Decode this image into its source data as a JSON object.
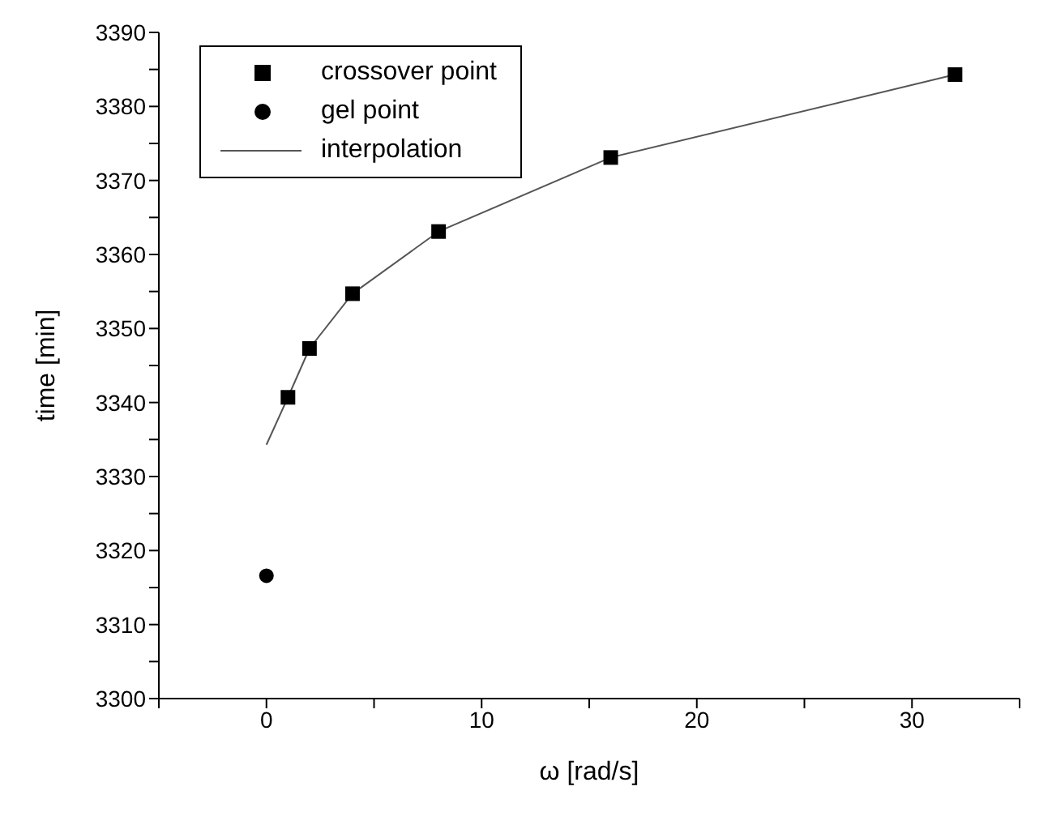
{
  "chart_data": {
    "type": "scatter",
    "xlabel": "ω [rad/s]",
    "ylabel": "time [min]",
    "xlim": [
      -5,
      35
    ],
    "xticks": [
      {
        "value": -5,
        "label": null
      },
      0,
      {
        "value": 5,
        "label": null
      },
      10,
      {
        "value": 15,
        "label": null
      },
      20,
      {
        "value": 25,
        "label": null
      },
      30,
      {
        "value": 35,
        "label": null
      }
    ],
    "ylim": [
      3300,
      3390
    ],
    "yticks": [
      3300,
      {
        "value": 3305,
        "label": null
      },
      3310,
      {
        "value": 3315,
        "label": null
      },
      3320,
      {
        "value": 3325,
        "label": null
      },
      3330,
      {
        "value": 3335,
        "label": null
      },
      3340,
      {
        "value": 3345,
        "label": null
      },
      3350,
      {
        "value": 3355,
        "label": null
      },
      3360,
      {
        "value": 3365,
        "label": null
      },
      3370,
      {
        "value": 3375,
        "label": null
      },
      3380,
      {
        "value": 3385,
        "label": null
      },
      3390
    ],
    "grid": false,
    "legend": "top left",
    "series": [
      {
        "name": "crossover point",
        "marker": "square",
        "color": "#000000",
        "x": [
          1,
          2,
          4,
          8,
          16,
          32
        ],
        "values": [
          3340.7,
          3347.3,
          3354.7,
          3363.1,
          3373.1,
          3384.3
        ]
      },
      {
        "name": "gel point",
        "marker": "circle",
        "color": "#000000",
        "x": [
          0
        ],
        "values": [
          3316.6
        ]
      },
      {
        "name": "interpolation",
        "type": "line",
        "marker": "none",
        "line_style": "solid",
        "color": "#555555",
        "x": [
          0,
          1,
          2,
          4,
          8,
          16,
          32
        ],
        "values": [
          3334.3,
          3340.7,
          3347.3,
          3354.7,
          3363.1,
          3373.1,
          3384.3
        ]
      }
    ]
  }
}
